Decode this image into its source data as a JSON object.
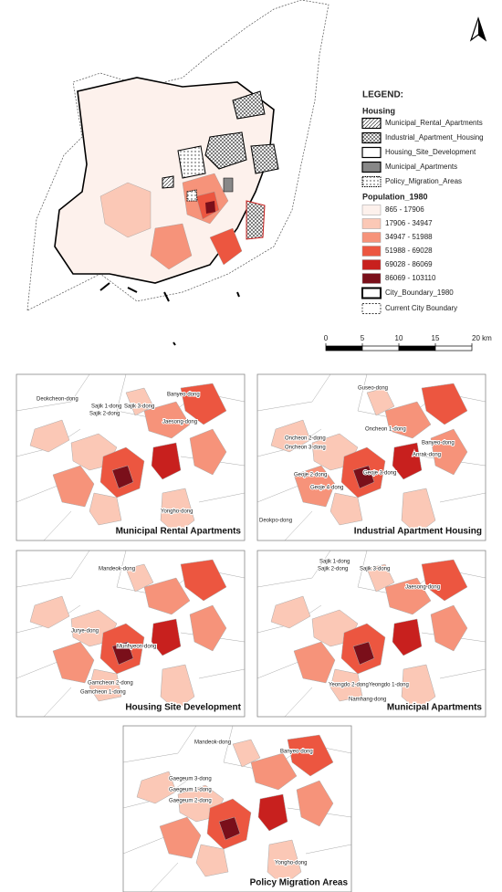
{
  "legend": {
    "title": "LEGEND:",
    "housing_heading": "Housing",
    "housing": [
      "Municipal_Rental_Apartments",
      "Industrial_Apartment_Housing",
      "Housing_Site_Development",
      "Municipal_Apartments",
      "Policy_Migration_Areas"
    ],
    "population_heading": "Population_1980",
    "population": [
      {
        "label": "865 - 17906",
        "color": "#fdf1ec"
      },
      {
        "label": "17906 - 34947",
        "color": "#fbc8b6"
      },
      {
        "label": "34947 - 51988",
        "color": "#f6937a"
      },
      {
        "label": "51988 - 69028",
        "color": "#ec5640"
      },
      {
        "label": "69028 - 86069",
        "color": "#c8201e"
      },
      {
        "label": "86069 - 103110",
        "color": "#7a0f1a"
      }
    ],
    "boundaries": [
      "City_Boundary_1980",
      "Current City Boundary"
    ]
  },
  "scale_bar": {
    "ticks": [
      0,
      5,
      10,
      15,
      {
        "value": 20,
        "label": "20 km"
      }
    ]
  },
  "panels": [
    {
      "title": "Municipal Rental Apartments",
      "labels": [
        "Deokcheon-dong",
        "Sajik 1-dong",
        "Sajik 2-dong",
        "Sajik 3-dong",
        "Banyeo-dong",
        "Jaesong-dong",
        "Yongho-dong"
      ]
    },
    {
      "title": "Industrial Apartment Housing",
      "labels": [
        "Guseo-dong",
        "Oncheon 1-dong",
        "Oncheon 2-dong",
        "Oncheon 3-dong",
        "Banyeo-dong",
        "Anrak-dong",
        "Geoje 2-dong",
        "Geoje 3-dong",
        "Geoje 4-dong",
        "Deokpo-dong"
      ]
    },
    {
      "title": "Housing Site Development",
      "labels": [
        "Mandeok-dong",
        "Jurye-dong",
        "Munhyeon-dong",
        "Gamcheon 2-dong",
        "Gamcheon 1-dong"
      ]
    },
    {
      "title": "Municipal Apartments",
      "labels": [
        "Sajik 1-dong",
        "Sajik 2-dong",
        "Sajik 3-dong",
        "Jaesong-dong",
        "Yeongdo 2-dong",
        "Yeongdo 1-dong",
        "Namhang-dong"
      ]
    },
    {
      "title": "Policy Migration Areas",
      "labels": [
        "Mandeok-dong",
        "Banyeo-dong",
        "Gaegeum 3-dong",
        "Gaegeum 1-dong",
        "Gaegeum 2-dong",
        "Yongho-dong"
      ]
    }
  ]
}
